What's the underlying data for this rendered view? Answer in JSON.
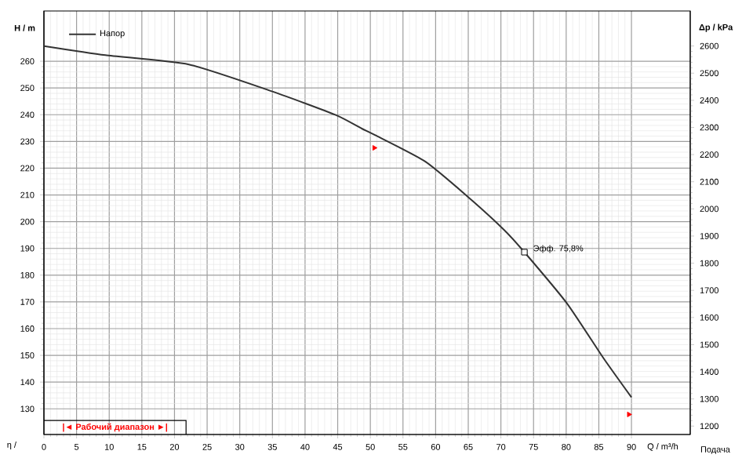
{
  "chart_data": {
    "type": "line",
    "xlabel": "Q / m³/h",
    "ylabel": "H / m",
    "y2label": "Δp / kPa",
    "x": [
      0,
      9.4,
      22.2,
      35,
      44.7,
      48.7,
      50.7,
      58.4,
      64.8,
      70.5,
      73.6,
      80.1,
      85.7,
      90
    ],
    "series": [
      {
        "name": "Напор",
        "color": "#333333",
        "values": [
          265.7,
          262.3,
          258.8,
          248.7,
          239.9,
          234.8,
          232.4,
          222.5,
          209.6,
          196.9,
          188.6,
          169.5,
          149,
          134.3
        ]
      },
      {
        "type": "scatter",
        "color": "#ff0000",
        "marker": "triangle",
        "x": [
          50.6,
          89.6
        ],
        "values": [
          227.6,
          127.9
        ]
      },
      {
        "type": "scatter",
        "color": "#000000",
        "marker": "square",
        "x": [
          73.6
        ],
        "values": [
          188.6
        ]
      }
    ],
    "annotations": [
      {
        "text": "Эфф.  75,8%",
        "x": 73.6,
        "y": 188.6
      },
      "|◄ Рабочий диапазон ►|",
      "Подача",
      "η /"
    ],
    "xlim": [
      0,
      99
    ],
    "ylim": [
      120.4,
      278.8
    ],
    "y2lim": [
      1169,
      2729
    ],
    "xticks": [
      0,
      5,
      10,
      15,
      20,
      25,
      30,
      35,
      40,
      45,
      50,
      55,
      60,
      65,
      70,
      75,
      80,
      85,
      90
    ],
    "yticks": [
      130,
      140,
      150,
      160,
      170,
      180,
      190,
      200,
      210,
      220,
      230,
      240,
      250,
      260
    ],
    "y2ticks": [
      1200,
      1300,
      1400,
      1500,
      1600,
      1700,
      1800,
      1900,
      2000,
      2100,
      2200,
      2300,
      2400,
      2500,
      2600
    ],
    "grid": true,
    "legend": "top left",
    "marker": "none"
  }
}
